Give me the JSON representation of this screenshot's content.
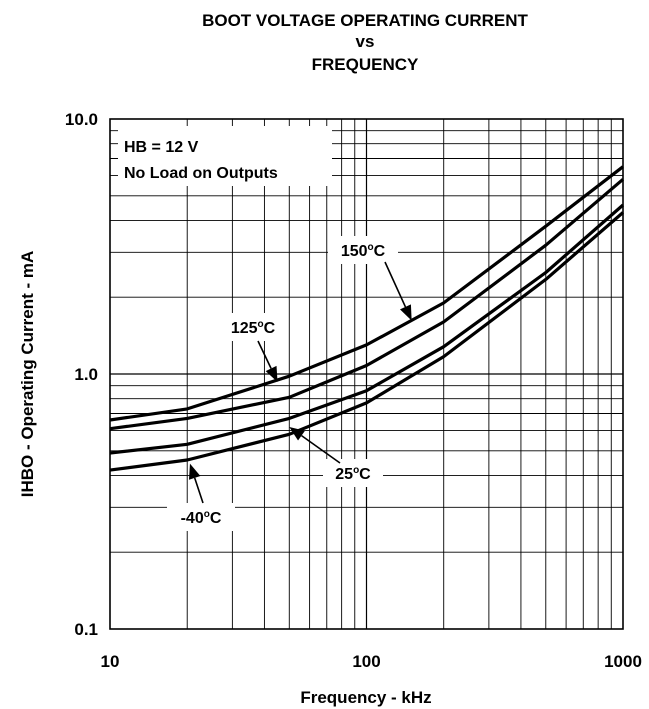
{
  "chart_data": {
    "type": "line",
    "title_lines": [
      "BOOT VOLTAGE OPERATING CURRENT",
      "vs",
      "FREQUENCY"
    ],
    "xlabel": "Frequency - kHz",
    "ylabel": "IHBO - Operating Current  - mA",
    "x_scale": "log",
    "y_scale": "log",
    "xlim": [
      10,
      1000
    ],
    "ylim": [
      0.1,
      10.0
    ],
    "x_tick_labels": [
      "10",
      "100",
      "1000"
    ],
    "y_tick_labels": [
      "0.1",
      "1.0",
      "10.0"
    ],
    "grid": true,
    "conditions": [
      "HB = 12 V",
      "No Load on Outputs"
    ],
    "series": [
      {
        "name": "150°C",
        "label_main": "150",
        "label_deg": "o",
        "label_unit": "C",
        "x": [
          10,
          20,
          50,
          100,
          200,
          500,
          1000
        ],
        "y": [
          0.66,
          0.73,
          0.98,
          1.3,
          1.9,
          3.8,
          6.5
        ]
      },
      {
        "name": "125°C",
        "label_main": "125",
        "label_deg": "o",
        "label_unit": "C",
        "x": [
          10,
          20,
          50,
          100,
          200,
          500,
          1000
        ],
        "y": [
          0.61,
          0.67,
          0.81,
          1.08,
          1.6,
          3.2,
          5.8
        ]
      },
      {
        "name": "25°C",
        "label_main": "25",
        "label_deg": "o",
        "label_unit": "C",
        "x": [
          10,
          20,
          50,
          100,
          200,
          500,
          1000
        ],
        "y": [
          0.49,
          0.53,
          0.67,
          0.86,
          1.28,
          2.5,
          4.6
        ]
      },
      {
        "name": "-40°C",
        "label_main": "-40",
        "label_deg": "o",
        "label_unit": "C",
        "x": [
          10,
          20,
          50,
          100,
          200,
          500,
          1000
        ],
        "y": [
          0.42,
          0.46,
          0.58,
          0.77,
          1.17,
          2.35,
          4.3
        ]
      }
    ]
  }
}
